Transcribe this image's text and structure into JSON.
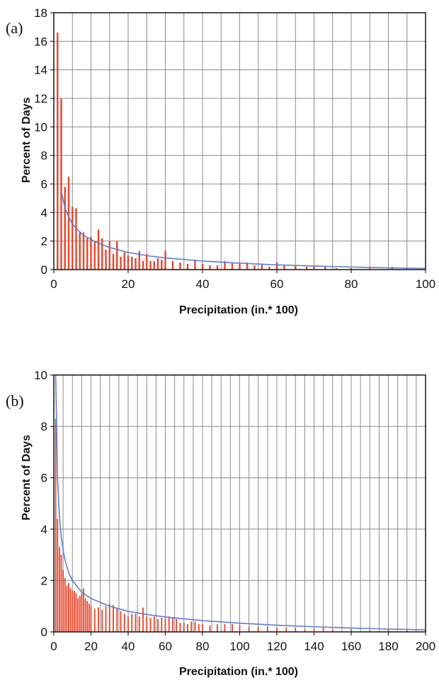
{
  "chart_data": [
    {
      "type": "bar",
      "panel_label": "(a)",
      "xlabel": "Precipitation (in.* 100)",
      "ylabel": "Percent of Days",
      "xlim": [
        0,
        100
      ],
      "ylim": [
        0,
        18
      ],
      "xticks": [
        0,
        20,
        40,
        60,
        80,
        100
      ],
      "yticks": [
        0,
        2,
        4,
        6,
        8,
        10,
        12,
        14,
        16,
        18
      ],
      "x_grid_step": 5,
      "y_grid_step": 2,
      "grid": true,
      "bar_color": "#e8442a",
      "curve_color": "#5b7fd6",
      "bars": {
        "x": [
          1,
          2,
          3,
          4,
          5,
          6,
          7,
          8,
          9,
          10,
          11,
          12,
          13,
          14,
          15,
          16,
          17,
          18,
          19,
          20,
          21,
          22,
          23,
          24,
          25,
          26,
          27,
          28,
          29,
          30,
          32,
          34,
          36,
          38,
          40,
          42,
          44,
          46,
          48,
          50,
          52,
          54,
          56,
          58,
          60,
          62,
          65,
          68,
          70,
          73,
          76,
          80,
          85,
          91,
          95
        ],
        "values": [
          16.6,
          12.0,
          5.8,
          6.5,
          4.4,
          4.3,
          2.6,
          2.6,
          2.2,
          2.3,
          2.0,
          2.8,
          2.2,
          1.4,
          2.0,
          1.1,
          2.0,
          0.9,
          1.2,
          1.0,
          0.9,
          0.8,
          1.3,
          0.6,
          1.1,
          0.6,
          0.6,
          0.8,
          0.7,
          1.3,
          0.6,
          0.5,
          0.4,
          0.7,
          0.4,
          0.3,
          0.3,
          0.6,
          0.5,
          0.4,
          0.5,
          0.3,
          0.4,
          0.2,
          0.5,
          0.3,
          0.3,
          0.2,
          0.2,
          0.2,
          0.1,
          0.1,
          0.1,
          0.2,
          0.1
        ]
      },
      "fit_curve": {
        "x": [
          2,
          3,
          4,
          5,
          6,
          8,
          10,
          12,
          15,
          20,
          25,
          30,
          40,
          50,
          60,
          70,
          80,
          90,
          100
        ],
        "y": [
          5.5,
          4.3,
          3.7,
          3.2,
          2.9,
          2.4,
          2.1,
          1.85,
          1.55,
          1.2,
          0.98,
          0.82,
          0.6,
          0.45,
          0.33,
          0.25,
          0.18,
          0.12,
          0.08
        ]
      }
    },
    {
      "type": "bar",
      "panel_label": "(b)",
      "xlabel": "Precipitation (in.* 100)",
      "ylabel": "Percent of Days",
      "xlim": [
        0,
        200
      ],
      "ylim": [
        0,
        10
      ],
      "xticks": [
        0,
        20,
        40,
        60,
        80,
        100,
        120,
        140,
        160,
        180,
        200
      ],
      "yticks": [
        0,
        2,
        4,
        6,
        8,
        10
      ],
      "x_grid_step": 5,
      "y_grid_step": 2,
      "grid": true,
      "bar_color": "#e8442a",
      "curve_color": "#5b7fd6",
      "bars": {
        "x": [
          1,
          2,
          3,
          4,
          5,
          6,
          7,
          8,
          9,
          10,
          11,
          12,
          13,
          14,
          15,
          16,
          17,
          18,
          19,
          20,
          22,
          24,
          26,
          28,
          30,
          32,
          34,
          36,
          38,
          40,
          42,
          44,
          46,
          48,
          50,
          52,
          54,
          56,
          58,
          60,
          62,
          64,
          66,
          68,
          70,
          72,
          74,
          76,
          78,
          80,
          84,
          88,
          92,
          96,
          100,
          105,
          110,
          115,
          120,
          125,
          130,
          135,
          140,
          145,
          150,
          160,
          170,
          180,
          190,
          200
        ],
        "values": [
          8.3,
          4.4,
          3.3,
          3.0,
          2.4,
          2.1,
          1.8,
          1.9,
          1.7,
          1.6,
          1.6,
          1.5,
          1.3,
          1.4,
          1.5,
          1.7,
          1.3,
          1.2,
          1.1,
          1.0,
          0.9,
          0.95,
          0.85,
          1.0,
          1.1,
          1.05,
          0.9,
          0.8,
          0.7,
          0.6,
          0.7,
          0.7,
          0.6,
          0.95,
          0.6,
          0.55,
          0.6,
          0.5,
          0.55,
          0.5,
          0.6,
          0.55,
          0.5,
          0.35,
          0.35,
          0.3,
          0.4,
          0.4,
          0.3,
          0.3,
          0.25,
          0.3,
          0.3,
          0.3,
          0.25,
          0.2,
          0.2,
          0.2,
          0.15,
          0.15,
          0.15,
          0.1,
          0.12,
          0.15,
          0.1,
          0.1,
          0.08,
          0.1,
          0.06,
          0.05
        ]
      },
      "fit_curve": {
        "x": [
          1,
          2,
          3,
          4,
          5,
          6,
          8,
          10,
          15,
          20,
          30,
          40,
          50,
          60,
          80,
          100,
          120,
          140,
          160,
          180,
          200
        ],
        "y": [
          10,
          6.0,
          4.5,
          3.7,
          3.2,
          2.8,
          2.3,
          2.0,
          1.55,
          1.3,
          1.0,
          0.8,
          0.68,
          0.58,
          0.44,
          0.34,
          0.26,
          0.2,
          0.15,
          0.11,
          0.08
        ]
      }
    }
  ]
}
